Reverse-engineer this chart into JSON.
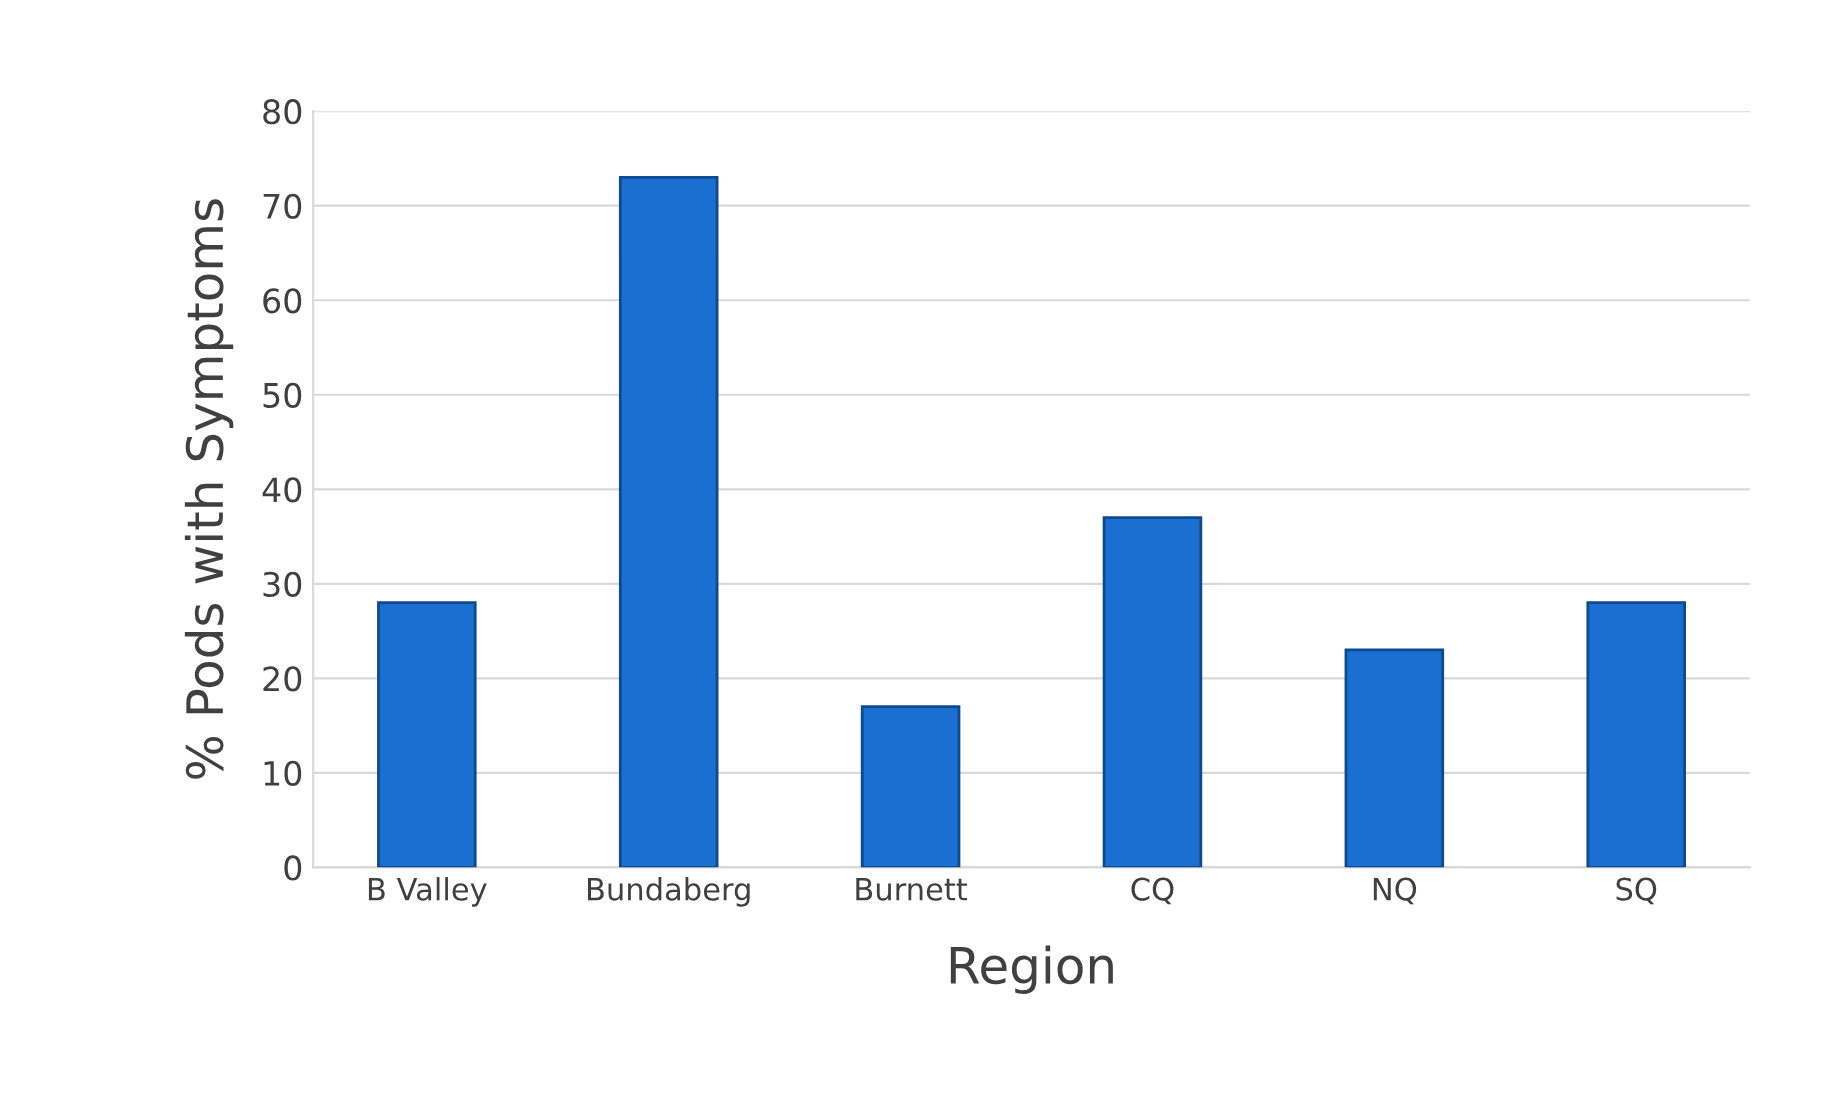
{
  "chart_data": {
    "type": "bar",
    "xlabel": "Region",
    "ylabel": "% Pods with Symptoms",
    "categories": [
      "B Valley",
      "Bundaberg",
      "Burnett",
      "CQ",
      "NQ",
      "SQ"
    ],
    "values": [
      28,
      73,
      17,
      37,
      23,
      28
    ],
    "color": "#1a6fd0",
    "ylim": [
      0,
      80
    ],
    "yticks": [
      0,
      10,
      20,
      30,
      40,
      50,
      60,
      70,
      80
    ],
    "grid": "y"
  }
}
